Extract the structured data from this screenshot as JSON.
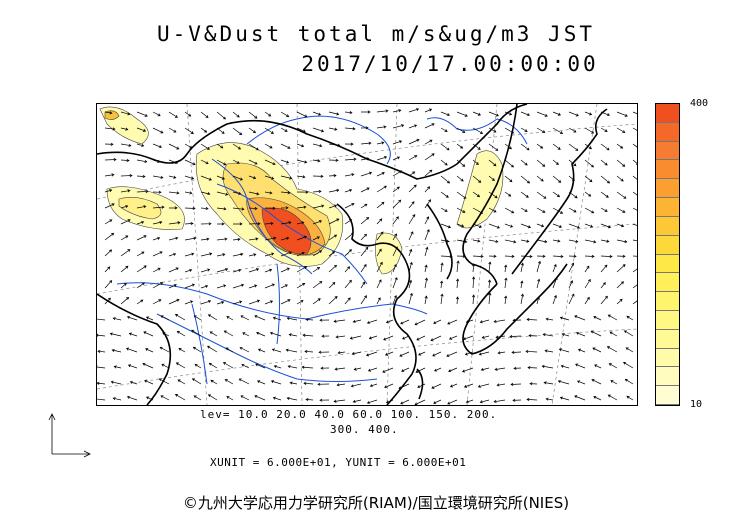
{
  "title": {
    "line1": "U-V&Dust total m/s&ug/m3 JST",
    "line2": "2017/10/17.00:00:00"
  },
  "colorbar": {
    "max_label": "400",
    "min_label": "10",
    "colors": [
      "#f05020",
      "#f46828",
      "#f57c30",
      "#f88c2e",
      "#fba030",
      "#fcb432",
      "#fdc836",
      "#fdd83a",
      "#fee848",
      "#fff05a",
      "#fff46e",
      "#fff882",
      "#fffa96",
      "#fffbaa",
      "#fffcbe",
      "#fffdd2"
    ]
  },
  "levels": {
    "line1": "lev=  10.0  20.0  40.0  60.0  100.  150.  200.",
    "line2": "300.  400."
  },
  "units": "XUNIT = 6.000E+01, YUNIT = 6.000E+01",
  "credit": "©九州大学応用力学研究所(RIAM)/国立環境研究所(NIES)",
  "colors": {
    "coast": "#000000",
    "river": "#1a4fd8",
    "grid": "#888888"
  }
}
